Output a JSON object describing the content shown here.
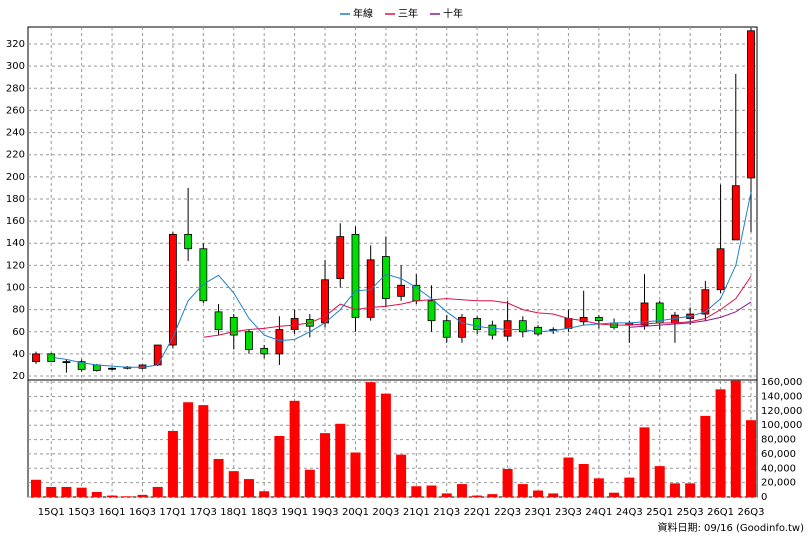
{
  "chart_data": {
    "type": "candlestick",
    "categories": [
      null,
      "15Q1",
      null,
      "15Q3",
      null,
      "16Q1",
      null,
      "16Q3",
      null,
      "17Q1",
      null,
      "17Q3",
      null,
      "18Q1",
      null,
      "18Q3",
      null,
      "19Q1",
      null,
      "19Q3",
      null,
      "20Q1",
      null,
      "20Q3",
      null,
      "21Q1",
      null,
      "21Q3",
      null,
      "22Q1",
      null,
      "22Q3",
      null,
      "23Q1",
      null,
      "23Q3",
      null,
      "24Q1",
      null,
      "24Q3",
      null,
      "25Q1",
      null,
      "25Q3",
      null,
      "26Q1",
      null,
      "26Q3"
    ],
    "open": [
      33,
      40,
      33,
      33,
      30,
      27,
      27,
      27,
      30,
      48,
      148,
      135,
      78,
      73,
      60,
      45,
      40,
      62,
      71,
      68,
      108,
      148,
      73,
      128,
      92,
      102,
      88,
      70,
      55,
      72,
      66,
      56,
      70,
      64,
      62,
      63,
      69,
      73,
      68,
      66,
      66,
      86,
      68,
      72,
      76,
      98,
      143,
      199
    ],
    "high": [
      42,
      41,
      35,
      35,
      31,
      28,
      29,
      30,
      48,
      150,
      190,
      140,
      85,
      76,
      62,
      48,
      74,
      80,
      76,
      125,
      158,
      155,
      138,
      146,
      120,
      112,
      102,
      75,
      76,
      74,
      70,
      88,
      74,
      66,
      64,
      80,
      97,
      75,
      72,
      70,
      112,
      88,
      78,
      82,
      106,
      193,
      293,
      335
    ],
    "low": [
      31,
      33,
      23,
      24,
      24,
      25,
      26,
      26,
      29,
      45,
      124,
      86,
      57,
      44,
      40,
      36,
      30,
      58,
      55,
      64,
      100,
      60,
      70,
      82,
      88,
      85,
      60,
      50,
      50,
      58,
      53,
      52,
      55,
      56,
      58,
      60,
      66,
      63,
      62,
      50,
      62,
      62,
      50,
      66,
      70,
      95,
      143,
      150
    ],
    "close": [
      40,
      33,
      33,
      26,
      25,
      27,
      28,
      30,
      48,
      148,
      135,
      88,
      62,
      57,
      44,
      40,
      62,
      72,
      65,
      107,
      146,
      73,
      125,
      90,
      102,
      88,
      70,
      55,
      73,
      62,
      57,
      70,
      60,
      58,
      62,
      72,
      73,
      70,
      64,
      68,
      86,
      68,
      75,
      76,
      98,
      135,
      192,
      332
    ],
    "up_color": "#ff0000",
    "down_color": "#00dd00",
    "series": [
      {
        "name": "年線",
        "color": "#1f7fd0",
        "values": [
          null,
          37,
          35,
          32,
          30,
          29,
          28,
          28,
          30,
          55,
          88,
          103,
          111,
          95,
          72,
          57,
          52,
          53,
          60,
          68,
          80,
          97,
          98,
          112,
          108,
          100,
          90,
          78,
          68,
          65,
          63,
          62,
          62,
          60,
          61,
          63,
          66,
          67,
          68,
          68,
          69,
          70,
          72,
          74,
          78,
          90,
          120,
          186
        ]
      },
      {
        "name": "三年",
        "color": "#e0104a",
        "values": [
          null,
          null,
          null,
          null,
          null,
          null,
          null,
          null,
          null,
          null,
          null,
          55,
          57,
          60,
          62,
          63,
          65,
          66,
          68,
          74,
          85,
          80,
          82,
          83,
          85,
          88,
          89,
          90,
          89,
          88,
          88,
          86,
          80,
          77,
          76,
          72,
          70,
          67,
          66,
          66,
          67,
          68,
          68,
          69,
          72,
          80,
          90,
          110
        ]
      },
      {
        "name": "十年",
        "color": "#8a1a8a",
        "values": [
          null,
          null,
          null,
          null,
          null,
          null,
          null,
          null,
          null,
          null,
          null,
          null,
          null,
          null,
          null,
          null,
          null,
          null,
          null,
          null,
          null,
          null,
          null,
          null,
          null,
          null,
          null,
          null,
          null,
          null,
          null,
          null,
          null,
          null,
          null,
          null,
          null,
          null,
          null,
          64,
          65,
          66,
          67,
          68,
          70,
          73,
          78,
          87
        ]
      }
    ],
    "volume": {
      "color": "#ff0000",
      "values": [
        24000,
        14000,
        14000,
        13000,
        7000,
        2000,
        1000,
        3000,
        14000,
        92000,
        132000,
        128000,
        53000,
        36000,
        25000,
        8000,
        85000,
        134000,
        38000,
        89000,
        102000,
        62000,
        160000,
        144000,
        59000,
        15000,
        16000,
        5000,
        18000,
        2000,
        4000,
        39000,
        18000,
        9000,
        5000,
        55000,
        46000,
        26000,
        6000,
        27000,
        97000,
        43000,
        19000,
        19000,
        113000,
        150000,
        162000,
        107000
      ]
    },
    "ylim": [
      16.4,
      335.4
    ],
    "yticks": [
      20,
      40,
      60,
      80,
      100,
      120,
      140,
      160,
      180,
      200,
      220,
      240,
      260,
      280,
      300,
      320
    ],
    "y2lim": [
      0,
      163000
    ],
    "y2ticks": [
      0,
      {
        "value": 20000,
        "label": "20,000"
      },
      {
        "value": 40000,
        "label": "40,000"
      },
      {
        "value": 60000,
        "label": "60,000"
      },
      {
        "value": 80000,
        "label": "80,000"
      },
      {
        "value": 100000,
        "label": "100,000"
      },
      {
        "value": 120000,
        "label": "120,000"
      },
      {
        "value": 140000,
        "label": "140,000"
      },
      {
        "value": 160000,
        "label": "160,000"
      }
    ],
    "grid": true,
    "note": "資料日期: 09/16 (Goodinfo.tw)"
  }
}
